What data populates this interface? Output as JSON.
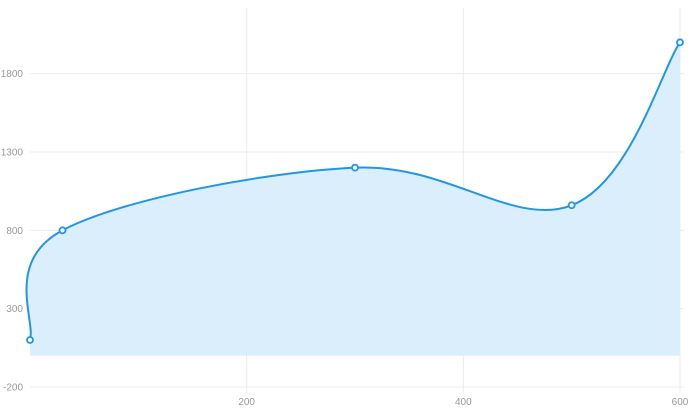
{
  "chart_data": {
    "type": "area",
    "title": "",
    "xlabel": "",
    "ylabel": "",
    "x": [
      0,
      30,
      300,
      500,
      600
    ],
    "series": [
      {
        "values": [
          100,
          800,
          1200,
          960,
          2000
        ]
      }
    ],
    "xlim": [
      0,
      600
    ],
    "ylim": [
      -200,
      2200
    ],
    "x_ticks": [
      200,
      400,
      600
    ],
    "y_ticks": [
      -200,
      300,
      800,
      1300,
      1800
    ],
    "x_tick_labels": [
      "200",
      "400",
      "600"
    ],
    "y_tick_labels": [
      "-200",
      "300",
      "800",
      "1300",
      "1800"
    ],
    "area_baseline": 0,
    "grid": true,
    "legend": "none",
    "colors": {
      "line": "#2196e6",
      "area": "#dbeefc",
      "grid": "#ececec",
      "axis_text": "#9a9a9a",
      "marker_fill": "#ffffff"
    }
  }
}
